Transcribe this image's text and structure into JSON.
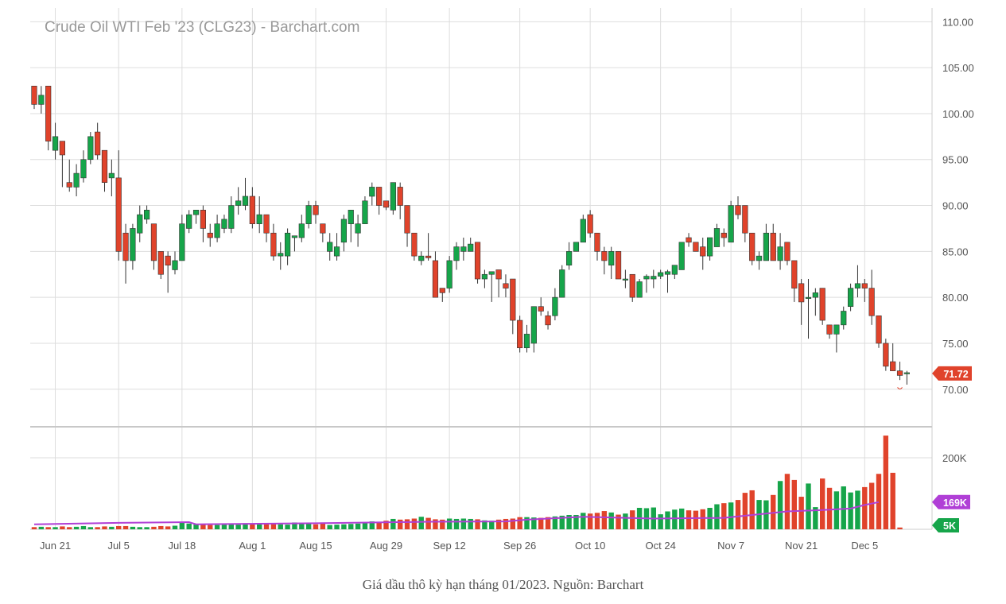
{
  "chart_title": "Crude Oil WTI Feb '23 (CLG23) - Barchart.com",
  "caption": "Giá dầu thô kỳ hạn tháng 01/2023. Nguồn: Barchart",
  "colors": {
    "up": "#16a54a",
    "down": "#e0432b",
    "avg": "#b03fd6",
    "grid": "#dddddd",
    "axis_text": "#555555"
  },
  "chart_data": {
    "type": "candlestick",
    "title": "Crude Oil WTI Feb '23 (CLG23) - Barchart.com",
    "price_axis": {
      "ylim": [
        66,
        111.5
      ],
      "ticks": [
        "110.00",
        "105.00",
        "100.00",
        "95.00",
        "90.00",
        "85.00",
        "80.00",
        "75.00",
        "70.00"
      ]
    },
    "volume_axis": {
      "ylim": [
        0,
        280
      ],
      "ticks": [
        "200K"
      ]
    },
    "x_ticks": [
      "Jun 21",
      "Jul 5",
      "Jul 18",
      "Aug 1",
      "Aug 15",
      "Aug 29",
      "Sep 12",
      "Sep 26",
      "Oct 10",
      "Oct 24",
      "Nov 7",
      "Nov 21",
      "Dec 5"
    ],
    "x_tick_index": [
      3,
      12,
      21,
      31,
      40,
      50,
      59,
      69,
      79,
      89,
      99,
      109,
      118
    ],
    "last_price_label": "71.72",
    "avg_volume_label": "169K",
    "volume_label": "5K",
    "ohlc": [
      [
        103,
        103,
        100.5,
        101
      ],
      [
        101,
        103,
        100,
        102
      ],
      [
        103,
        103,
        96,
        97
      ],
      [
        96,
        99,
        95,
        97.5
      ],
      [
        97,
        97,
        92,
        95.5
      ],
      [
        92.5,
        95,
        91.5,
        92
      ],
      [
        92,
        94.5,
        91,
        93.5
      ],
      [
        93,
        96,
        92.5,
        95
      ],
      [
        95,
        98,
        94.5,
        97.5
      ],
      [
        98,
        99,
        95,
        95.5
      ],
      [
        96,
        96,
        91.5,
        92.5
      ],
      [
        93,
        95,
        91,
        93.5
      ],
      [
        93,
        96,
        84,
        85
      ],
      [
        87,
        88,
        81.5,
        84
      ],
      [
        84,
        88,
        83,
        87.5
      ],
      [
        87,
        90,
        86,
        89
      ],
      [
        88.5,
        90,
        88,
        89.5
      ],
      [
        88,
        88,
        83,
        84
      ],
      [
        85,
        85,
        82,
        82.5
      ],
      [
        84.5,
        85,
        80.5,
        83.5
      ],
      [
        83,
        85,
        82.5,
        84
      ],
      [
        84,
        89,
        84,
        88
      ],
      [
        87.5,
        89.5,
        87,
        89
      ],
      [
        89,
        89.5,
        88,
        89.5
      ],
      [
        89.5,
        90,
        86,
        87.5
      ],
      [
        87,
        88,
        85.5,
        86.5
      ],
      [
        86.5,
        89,
        86,
        88
      ],
      [
        87.5,
        89,
        87,
        88.5
      ],
      [
        87.5,
        91,
        87,
        90
      ],
      [
        90,
        92,
        89,
        90.5
      ],
      [
        90,
        93,
        89.5,
        91
      ],
      [
        91,
        92,
        87.5,
        88
      ],
      [
        88,
        91,
        87,
        89
      ],
      [
        89,
        89,
        86,
        87
      ],
      [
        87,
        88,
        84,
        84.5
      ],
      [
        84.5,
        86,
        83,
        84.8
      ],
      [
        84.5,
        87.5,
        83.5,
        87
      ],
      [
        86.5,
        86.5,
        85,
        86.7
      ],
      [
        86.5,
        89,
        86,
        88
      ],
      [
        88,
        90.5,
        87.5,
        90
      ],
      [
        90,
        90.5,
        88,
        89
      ],
      [
        88,
        88,
        86,
        87
      ],
      [
        85,
        87,
        84,
        86
      ],
      [
        84.5,
        87,
        84,
        85.5
      ],
      [
        86,
        89,
        85,
        88.5
      ],
      [
        88,
        89.5,
        86,
        89.5
      ],
      [
        87,
        89,
        85.5,
        88
      ],
      [
        88,
        91,
        88,
        90.5
      ],
      [
        91,
        92.5,
        90,
        92
      ],
      [
        92,
        92,
        89,
        90
      ],
      [
        90.5,
        90.5,
        89.5,
        89.8
      ],
      [
        89.5,
        92.5,
        89,
        92.5
      ],
      [
        92,
        92.5,
        88.5,
        90
      ],
      [
        90,
        90,
        85.5,
        87
      ],
      [
        87,
        87,
        84,
        84.5
      ],
      [
        84,
        85,
        83.5,
        84.5
      ],
      [
        84.5,
        87,
        84,
        84.3
      ],
      [
        84,
        85,
        80,
        80
      ],
      [
        81,
        81,
        79.5,
        80.5
      ],
      [
        81,
        84.5,
        80.5,
        84
      ],
      [
        84,
        86,
        83,
        85.5
      ],
      [
        85,
        86.5,
        84,
        85.5
      ],
      [
        85,
        86.5,
        85,
        85.8
      ],
      [
        86,
        86,
        81.5,
        82
      ],
      [
        82,
        83,
        81,
        82.5
      ],
      [
        82.5,
        82.7,
        79.5,
        82.8
      ],
      [
        83,
        83,
        80,
        82
      ],
      [
        81.5,
        82.5,
        80,
        81
      ],
      [
        82,
        82,
        76,
        77.5
      ],
      [
        77.5,
        78,
        74,
        74.5
      ],
      [
        74.5,
        77,
        74,
        76
      ],
      [
        75,
        79,
        74,
        79
      ],
      [
        79,
        80,
        78,
        78.5
      ],
      [
        78,
        78.5,
        76.5,
        77
      ],
      [
        78,
        81,
        77.5,
        80
      ],
      [
        80,
        83.5,
        80,
        83
      ],
      [
        83.5,
        86,
        83,
        85
      ],
      [
        85,
        86,
        85,
        86
      ],
      [
        86,
        89,
        86,
        88.5
      ],
      [
        89,
        89.5,
        86.5,
        87
      ],
      [
        87,
        87,
        84,
        85
      ],
      [
        85,
        85.5,
        82.5,
        84
      ],
      [
        83.5,
        85.5,
        82,
        85
      ],
      [
        85,
        85,
        82,
        82
      ],
      [
        82,
        83,
        81,
        82
      ],
      [
        82.5,
        82.5,
        79.5,
        80
      ],
      [
        80,
        82,
        80,
        81.7
      ],
      [
        82,
        82.5,
        80.5,
        82.3
      ],
      [
        82,
        83,
        81,
        82.3
      ],
      [
        82.3,
        83,
        82,
        82.7
      ],
      [
        82.5,
        83,
        80.5,
        82.8
      ],
      [
        82.5,
        83.5,
        82,
        83.5
      ],
      [
        83,
        86,
        83,
        86
      ],
      [
        86.5,
        87,
        85.5,
        86
      ],
      [
        86,
        86,
        85,
        85
      ],
      [
        85.5,
        86.5,
        83,
        84.5
      ],
      [
        84.5,
        86.5,
        84,
        86.5
      ],
      [
        85.5,
        88,
        85.5,
        87.5
      ],
      [
        87,
        87.5,
        85.5,
        86.5
      ],
      [
        86,
        90.5,
        86,
        90
      ],
      [
        90,
        91,
        88.5,
        89
      ],
      [
        90,
        90,
        86,
        87
      ],
      [
        87,
        87,
        83.5,
        84
      ],
      [
        84,
        85,
        83,
        84.5
      ],
      [
        84,
        88,
        84,
        87
      ],
      [
        87,
        88,
        84,
        84
      ],
      [
        84,
        87,
        83,
        85.5
      ],
      [
        86,
        86,
        83.5,
        84
      ],
      [
        84,
        84,
        79.5,
        81
      ],
      [
        81.5,
        82,
        77,
        79.5
      ],
      [
        80,
        82,
        75.5,
        80
      ],
      [
        80,
        81,
        78,
        80.5
      ],
      [
        81,
        81,
        77,
        77.5
      ],
      [
        77,
        77,
        75.5,
        76
      ],
      [
        76,
        77,
        74,
        77
      ],
      [
        77,
        79,
        76.5,
        78.5
      ],
      [
        79,
        81.5,
        78.5,
        81
      ],
      [
        81,
        83.5,
        80,
        81.5
      ],
      [
        81.5,
        82,
        79.5,
        81
      ],
      [
        81,
        83,
        77,
        78
      ],
      [
        78,
        78,
        74.5,
        75
      ],
      [
        75,
        75.5,
        72,
        72.5
      ],
      [
        73,
        75,
        72,
        72
      ],
      [
        72,
        73,
        71,
        71.5
      ],
      [
        71.8,
        72,
        70.5,
        71.8
      ]
    ],
    "volume": [
      6,
      7,
      6,
      6,
      8,
      6,
      7,
      9,
      6,
      6,
      8,
      7,
      9,
      9,
      7,
      6,
      6,
      7,
      9,
      8,
      10,
      18,
      16,
      14,
      14,
      12,
      12,
      13,
      15,
      13,
      17,
      16,
      17,
      16,
      15,
      14,
      13,
      19,
      18,
      16,
      14,
      19,
      12,
      13,
      14,
      15,
      16,
      20,
      22,
      18,
      24,
      29,
      27,
      28,
      30,
      35,
      32,
      28,
      27,
      30,
      29,
      30,
      29,
      28,
      25,
      24,
      27,
      29,
      30,
      34,
      34,
      33,
      32,
      34,
      36,
      38,
      40,
      40,
      46,
      44,
      46,
      51,
      47,
      41,
      44,
      53,
      60,
      59,
      61,
      42,
      50,
      55,
      58,
      53,
      52,
      56,
      60,
      70,
      73,
      75,
      82,
      102,
      109,
      82,
      81,
      96,
      135,
      155,
      138,
      91,
      128,
      62,
      142,
      116,
      106,
      120,
      103,
      108,
      118,
      130,
      155,
      262,
      158,
      5
    ],
    "avg_volume": [
      [
        0,
        14
      ],
      [
        12,
        18
      ],
      [
        22,
        20
      ],
      [
        23,
        14
      ],
      [
        40,
        17
      ],
      [
        56,
        21
      ],
      [
        67,
        22
      ],
      [
        70,
        27
      ],
      [
        78,
        35
      ],
      [
        88,
        30
      ],
      [
        98,
        32
      ],
      [
        102,
        40
      ],
      [
        107,
        50
      ],
      [
        112,
        54
      ],
      [
        116,
        58
      ],
      [
        118,
        68
      ],
      [
        120,
        76
      ]
    ]
  }
}
